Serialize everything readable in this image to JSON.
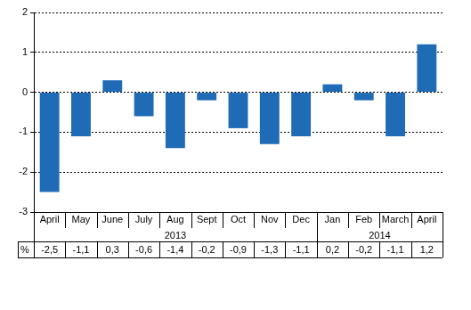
{
  "chart_data": {
    "type": "bar",
    "categories": [
      "April",
      "May",
      "June",
      "July",
      "Aug",
      "Sept",
      "Oct",
      "Nov",
      "Dec",
      "Jan",
      "Feb",
      "March",
      "April"
    ],
    "x_groups": [
      {
        "label": "2013",
        "count": 9
      },
      {
        "label": "2014",
        "count": 4
      }
    ],
    "values": [
      -2.5,
      -1.1,
      0.3,
      -0.6,
      -1.4,
      -0.2,
      -0.9,
      -1.3,
      -1.1,
      0.2,
      -0.2,
      -1.1,
      1.2
    ],
    "value_labels": [
      "-2,5",
      "-1,1",
      "0,3",
      "-0,6",
      "-1,4",
      "-0,2",
      "-0,9",
      "-1,3",
      "-1,1",
      "0,2",
      "-0,2",
      "-1,1",
      "1,2"
    ],
    "value_labels_title": "%",
    "color": "#1f6bb5",
    "ylim": [
      -3,
      2
    ],
    "yticks": [
      -3,
      -2,
      -1,
      0,
      1,
      2
    ],
    "grid": true
  }
}
